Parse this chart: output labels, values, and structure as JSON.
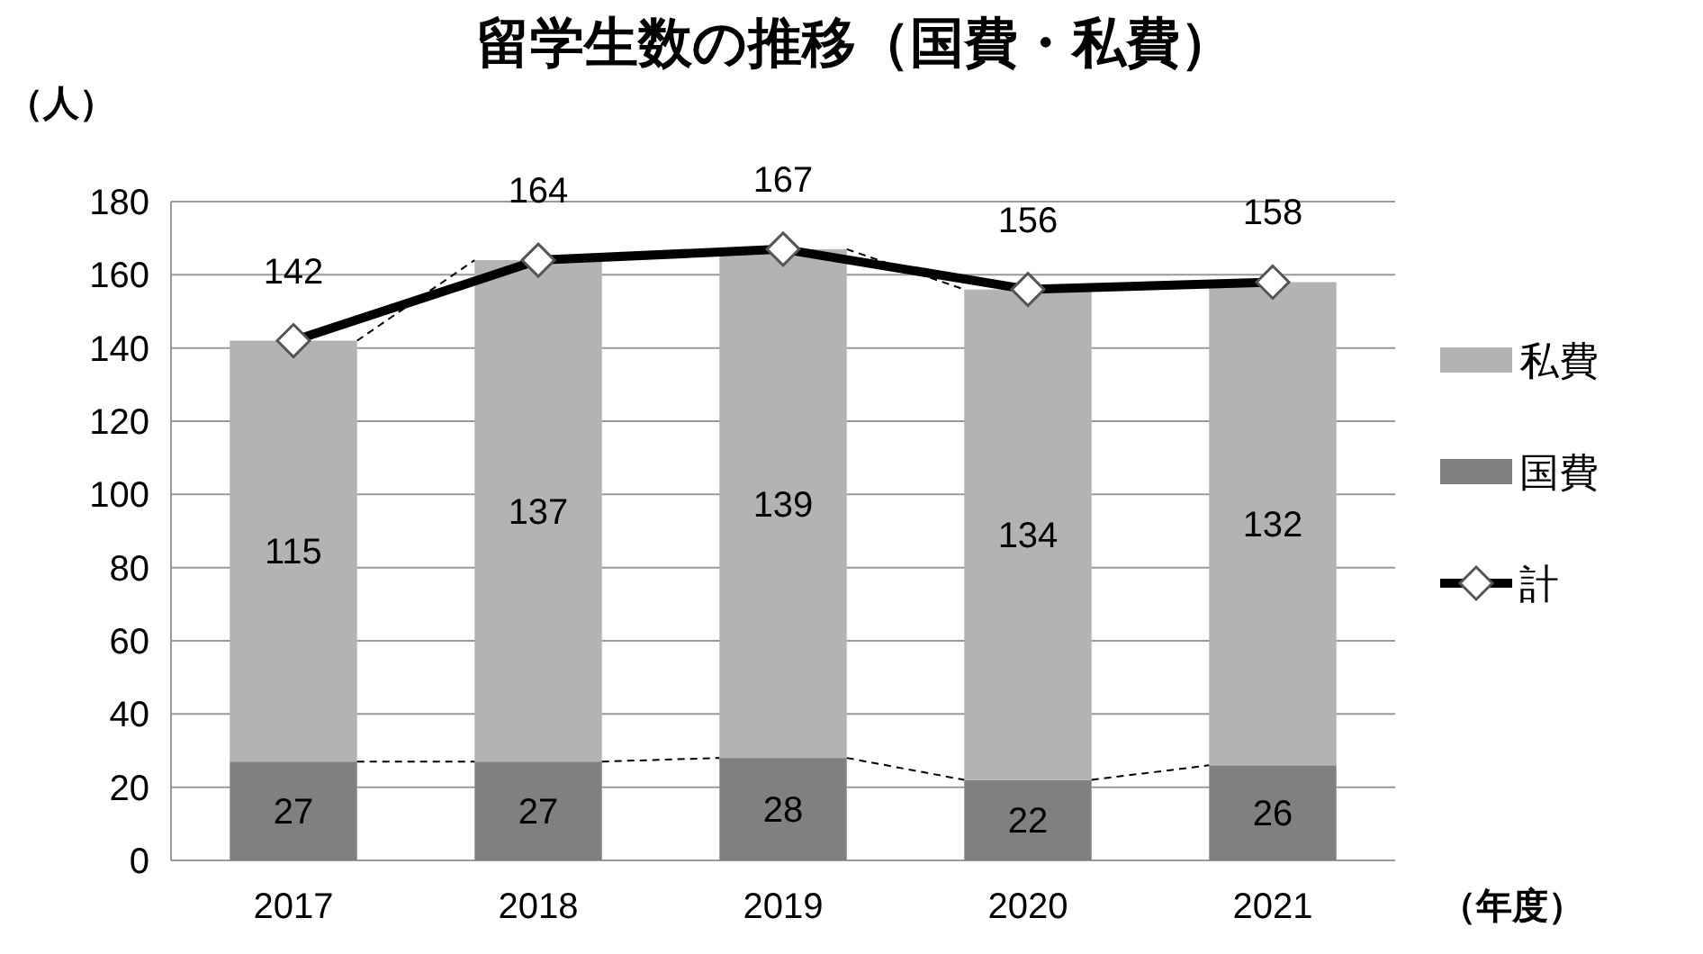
{
  "chart_data": {
    "type": "bar",
    "title": "留学生数の推移（国費・私費）",
    "ylabel": "（人）",
    "xlabel": "（年度）",
    "categories": [
      "2017",
      "2018",
      "2019",
      "2020",
      "2021"
    ],
    "stacked": true,
    "ylim": [
      0,
      180
    ],
    "yticks": [
      0,
      20,
      40,
      60,
      80,
      100,
      120,
      140,
      160,
      180
    ],
    "grid": "y",
    "legend": "right",
    "data_labels": true,
    "series": [
      {
        "name": "国費",
        "color": "#808080",
        "values": [
          27,
          27,
          28,
          22,
          26
        ]
      },
      {
        "name": "私費",
        "color": "#b3b3b3",
        "values": [
          115,
          137,
          139,
          134,
          132
        ]
      },
      {
        "name": "計",
        "type": "line",
        "color": "#000000",
        "marker": "diamond",
        "values": [
          142,
          164,
          167,
          156,
          158
        ]
      }
    ]
  }
}
